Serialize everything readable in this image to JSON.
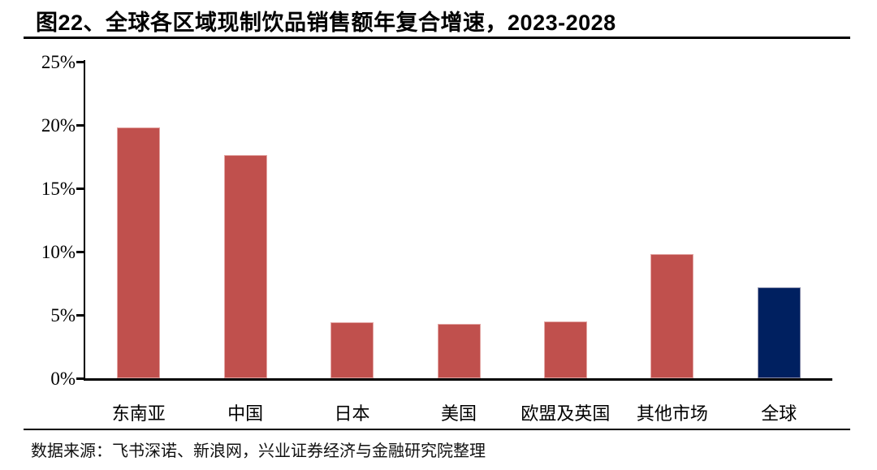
{
  "header": {
    "title": "图22、全球各区域现制饮品销售额年复合增速，2023-2028"
  },
  "footer": {
    "source_note": "数据来源：飞书深诺、新浪网，兴业证券经济与金融研究院整理"
  },
  "colors": {
    "bar_default": "#C0504D",
    "bar_highlight": "#002060",
    "axis": "#000000"
  },
  "chart_data": {
    "type": "bar",
    "title": "图22、全球各区域现制饮品销售额年复合增速，2023-2028",
    "categories": [
      "东南亚",
      "中国",
      "日本",
      "美国",
      "欧盟及英国",
      "其他市场",
      "全球"
    ],
    "values": [
      19.8,
      17.6,
      4.4,
      4.3,
      4.5,
      9.8,
      7.2
    ],
    "unit": "%",
    "xlabel": "",
    "ylabel": "",
    "ylim": [
      0,
      25
    ],
    "yticks": [
      "0%",
      "5%",
      "10%",
      "15%",
      "20%",
      "25%"
    ],
    "grid": false,
    "legend_position": "none",
    "bar_colors": [
      "#C0504D",
      "#C0504D",
      "#C0504D",
      "#C0504D",
      "#C0504D",
      "#C0504D",
      "#002060"
    ]
  }
}
